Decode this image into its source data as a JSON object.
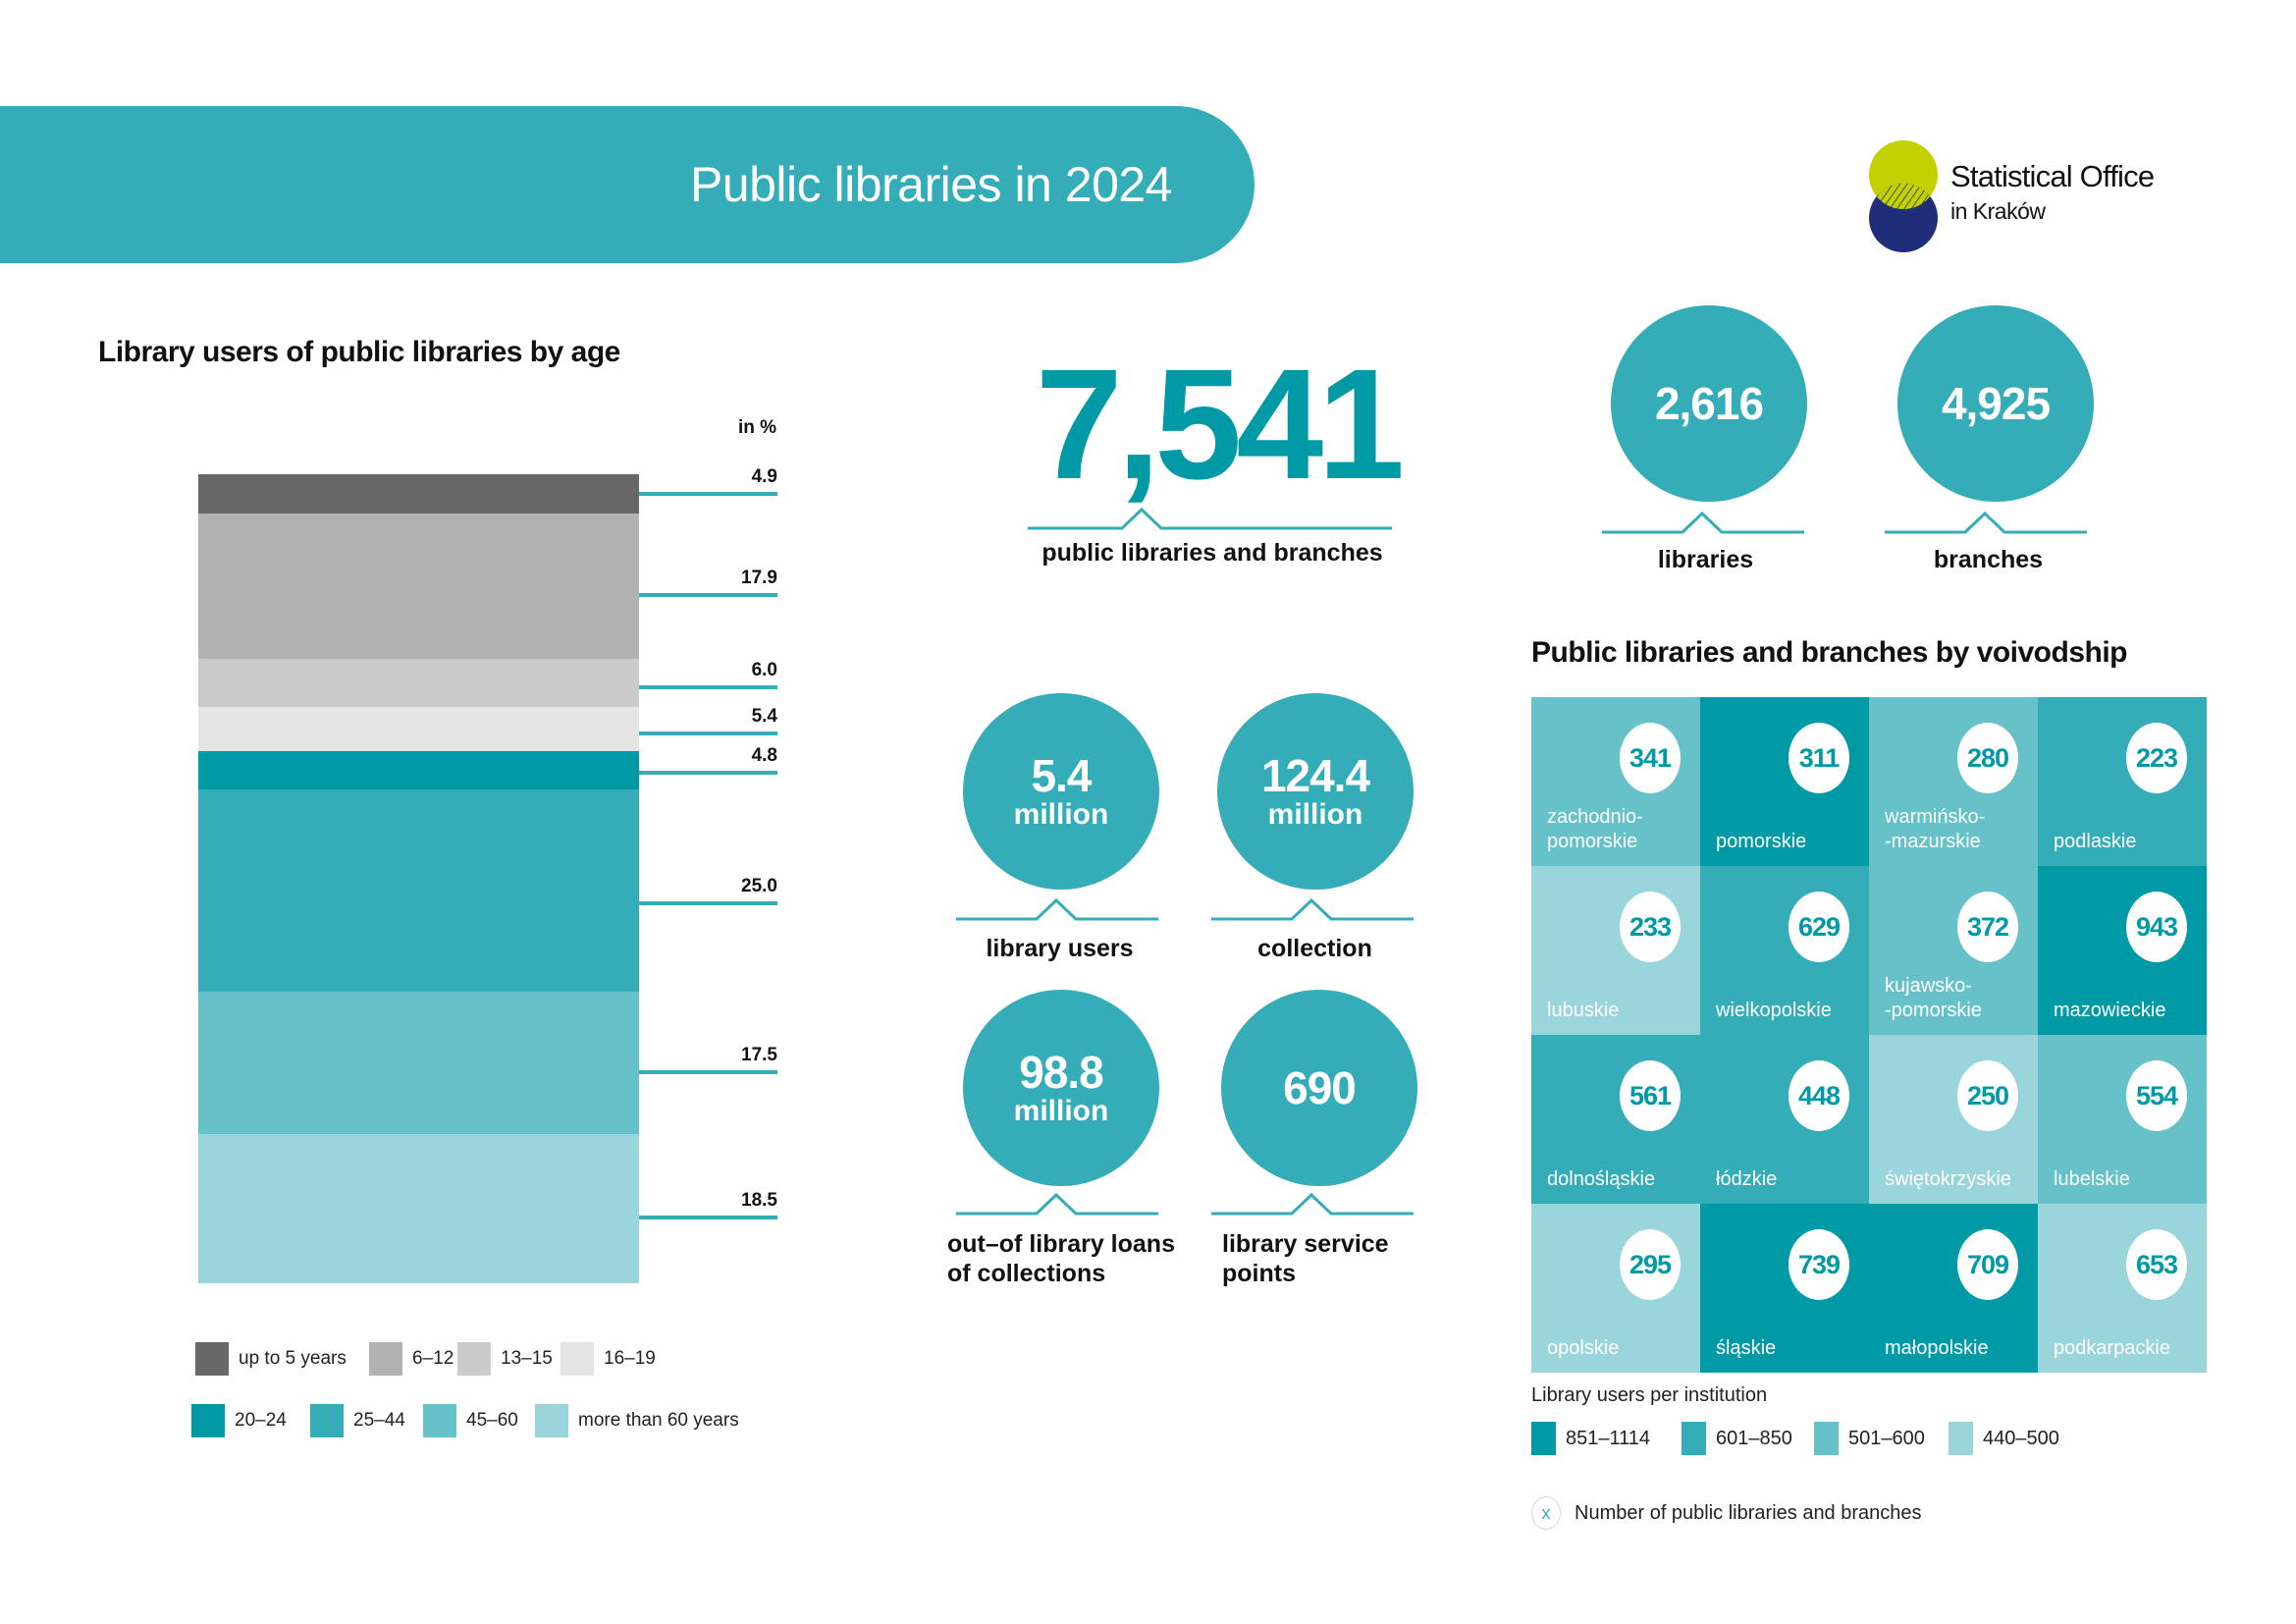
{
  "header": {
    "title": "Public libraries in 2024",
    "logo_line1": "Statistical Office",
    "logo_line2": "in Kraków",
    "logo_icon": "two-overlapping-circles-logo",
    "colors": {
      "banner": "#34adb8",
      "logo_top": "#c3d100",
      "logo_bottom": "#1f2e78"
    }
  },
  "age_section": {
    "title": "Library users of public libraries by age",
    "unit": "in %"
  },
  "chart_data": {
    "type": "bar",
    "subtype": "stacked-100",
    "title": "Library users of public libraries by age",
    "ylabel": "in %",
    "categories": [
      "Library users"
    ],
    "series": [
      {
        "name": "up to 5 years",
        "values": [
          4.9
        ],
        "label": "4.9",
        "color": "#686868"
      },
      {
        "name": "6–12",
        "values": [
          17.9
        ],
        "label": "17.9",
        "color": "#b2b2b2"
      },
      {
        "name": "13–15",
        "values": [
          6.0
        ],
        "label": "6.0",
        "color": "#cbcbcb"
      },
      {
        "name": "16–19",
        "values": [
          5.4
        ],
        "label": "5.4",
        "color": "#e5e5e5"
      },
      {
        "name": "20–24",
        "values": [
          4.8
        ],
        "label": "4.8",
        "color": "#009aa6"
      },
      {
        "name": "25–44",
        "values": [
          25.0
        ],
        "label": "25.0",
        "color": "#34adb8"
      },
      {
        "name": "45–60",
        "values": [
          17.5
        ],
        "label": "17.5",
        "color": "#66c2c8"
      },
      {
        "name": "more than 60 years",
        "values": [
          18.5
        ],
        "label": "18.5",
        "color": "#9bd5dc"
      }
    ],
    "ylim": [
      0,
      100
    ],
    "legend": "bottom",
    "grid": false
  },
  "kpis": {
    "main": {
      "value": "7,541",
      "label": "public libraries and branches"
    },
    "libraries": {
      "value": "2,616",
      "label": "libraries"
    },
    "branches": {
      "value": "4,925",
      "label": "branches"
    },
    "users": {
      "value": "5.4",
      "unit": "million",
      "label": "library users"
    },
    "collection": {
      "value": "124.4",
      "unit": "million",
      "label": "collection"
    },
    "loans": {
      "value": "98.8",
      "unit": "million",
      "label": "out–of library loans of collections"
    },
    "service_points": {
      "value": "690",
      "label": "library service points"
    }
  },
  "voivodship": {
    "title": "Public libraries and branches by voivodship",
    "cells": [
      {
        "name": "zachodnio-\npomorskie",
        "count": "341",
        "class": "501–600"
      },
      {
        "name": "pomorskie",
        "count": "311",
        "class": "851–1114"
      },
      {
        "name": "warmińsko-\n-mazurskie",
        "count": "280",
        "class": "501–600"
      },
      {
        "name": "podlaskie",
        "count": "223",
        "class": "601–850"
      },
      {
        "name": "lubuskie",
        "count": "233",
        "class": "440–500"
      },
      {
        "name": "wielkopolskie",
        "count": "629",
        "class": "601–850"
      },
      {
        "name": "kujawsko-\n-pomorskie",
        "count": "372",
        "class": "501–600"
      },
      {
        "name": "mazowieckie",
        "count": "943",
        "class": "851–1114"
      },
      {
        "name": "dolnośląskie",
        "count": "561",
        "class": "601–850"
      },
      {
        "name": "łódzkie",
        "count": "448",
        "class": "601–850"
      },
      {
        "name": "świętokrzyskie",
        "count": "250",
        "class": "440–500"
      },
      {
        "name": "lubelskie",
        "count": "554",
        "class": "501–600"
      },
      {
        "name": "opolskie",
        "count": "295",
        "class": "440–500"
      },
      {
        "name": "śląskie",
        "count": "739",
        "class": "851–1114"
      },
      {
        "name": "małopolskie",
        "count": "709",
        "class": "851–1114"
      },
      {
        "name": "podkarpackie",
        "count": "653",
        "class": "440–500"
      }
    ],
    "legend_title": "Library users per institution",
    "legend": [
      {
        "label": "851–1114",
        "color": "#009aa6"
      },
      {
        "label": "601–850",
        "color": "#34adb8"
      },
      {
        "label": "501–600",
        "color": "#66c2c8"
      },
      {
        "label": "440–500",
        "color": "#9bd5dc"
      }
    ],
    "note_symbol": "x",
    "note": "Number of public libraries and branches"
  }
}
